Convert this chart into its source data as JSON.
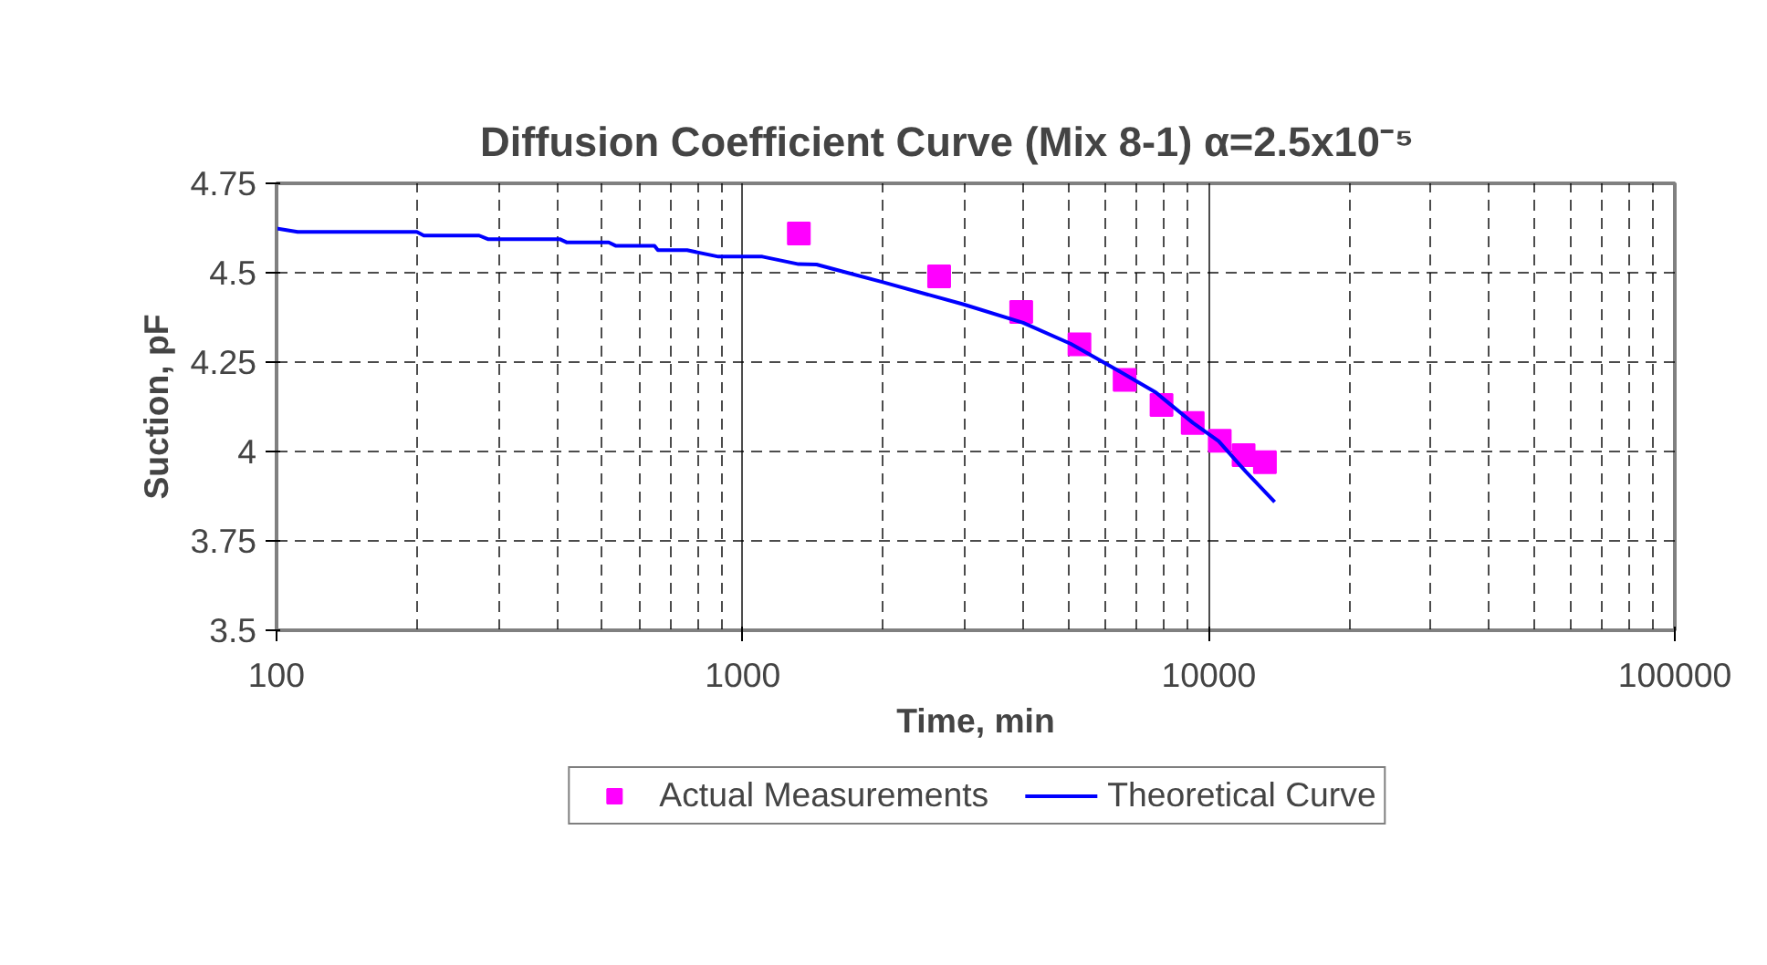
{
  "chart_data": {
    "type": "line",
    "title": "Diffusion Coefficient Curve (Mix 8-1)      α=2.5x10⁻⁵",
    "xlabel": "Time, min",
    "ylabel": "Suction, pF",
    "xlim": [
      100,
      100000
    ],
    "ylim": [
      3.5,
      4.75
    ],
    "xticks": [
      100,
      1000,
      10000,
      100000
    ],
    "yticks": [
      3.5,
      3.75,
      4,
      4.25,
      4.5,
      4.75
    ],
    "log": "x",
    "grid": true,
    "legend": "bottom",
    "series": [
      {
        "name": "Actual Measurements",
        "type": "scatter",
        "marker": "square",
        "color": "#ff00ff",
        "x": [
          1320,
          2640,
          3960,
          5280,
          6600,
          7920,
          9240,
          10560,
          11880,
          13200
        ],
        "values": [
          4.61,
          4.49,
          4.39,
          4.3,
          4.2,
          4.13,
          4.08,
          4.03,
          3.99,
          3.97
        ]
      },
      {
        "name": "Theoretical Curve",
        "marker": "none",
        "color": "#0000ff",
        "x": [
          100,
          111,
          200,
          207,
          272,
          284,
          405,
          419,
          516,
          535,
          647,
          658,
          760,
          887,
          1102,
          1318,
          1441,
          1621,
          1992,
          2969,
          3997,
          5060,
          6415,
          7700,
          9250,
          10500,
          12000,
          13850
        ],
        "values": [
          4.624,
          4.614,
          4.614,
          4.604,
          4.604,
          4.594,
          4.594,
          4.585,
          4.585,
          4.575,
          4.575,
          4.563,
          4.563,
          4.545,
          4.545,
          4.524,
          4.523,
          4.505,
          4.474,
          4.412,
          4.36,
          4.301,
          4.225,
          4.165,
          4.08,
          4.029,
          3.944,
          3.859
        ]
      }
    ]
  }
}
